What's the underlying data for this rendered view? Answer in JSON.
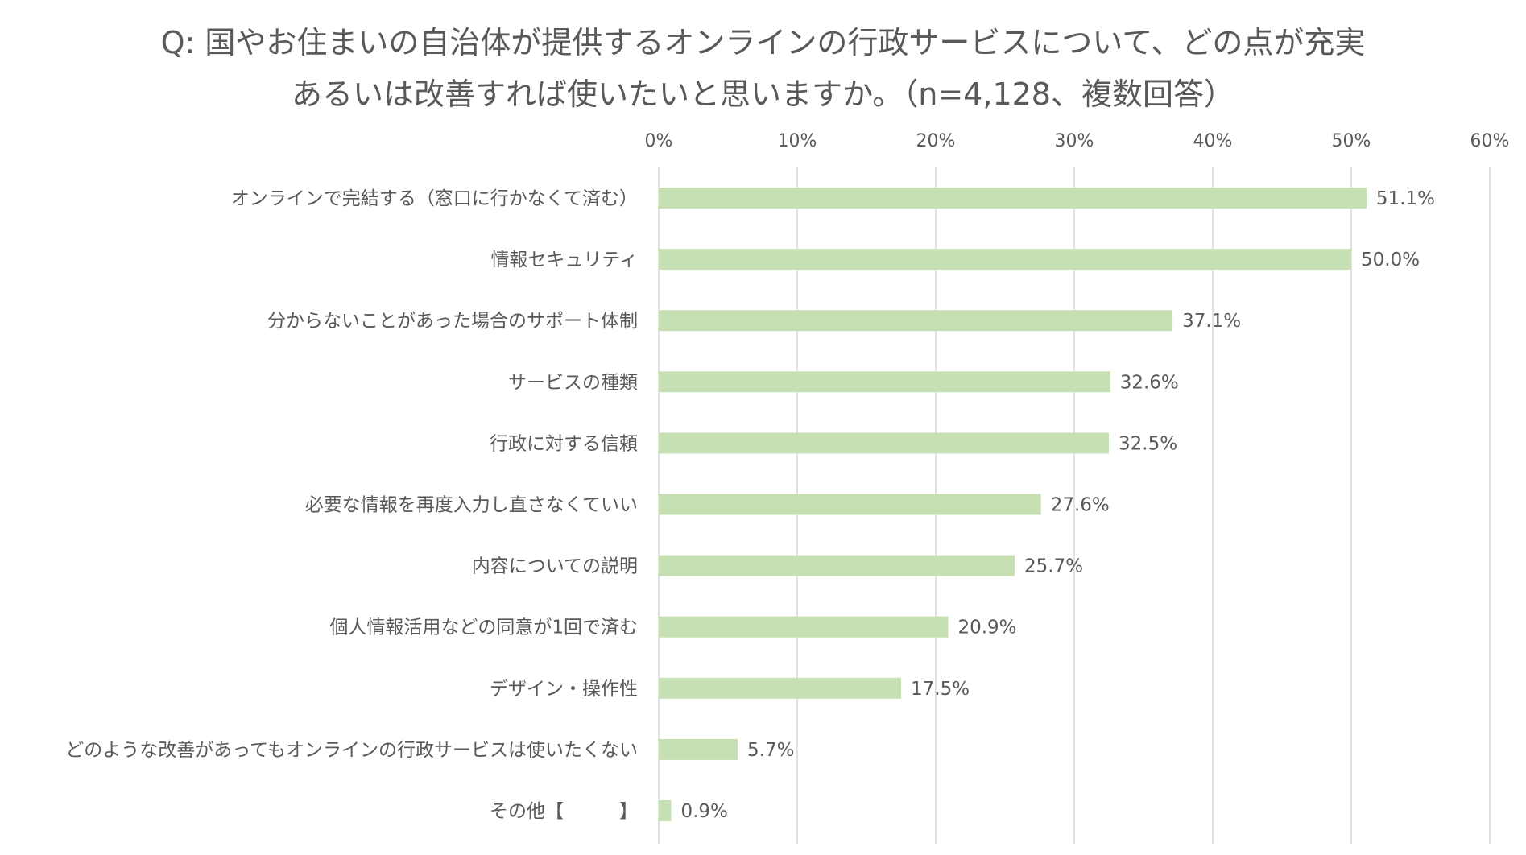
{
  "chart_data": {
    "type": "bar",
    "orientation": "horizontal",
    "title_lines": [
      "Q: 国やお住まいの自治体が提供するオンラインの行政サービスについて、どの点が充実",
      "あるいは改善すれば使いたいと思いますか。（n=4,128、複数回答）"
    ],
    "categories": [
      "オンラインで完結する（窓口に行かなくて済む）",
      "情報セキュリティ",
      "分からないことがあった場合のサポート体制",
      "サービスの種類",
      "行政に対する信頼",
      "必要な情報を再度入力し直さなくていい",
      "内容についての説明",
      "個人情報活用などの同意が1回で済む",
      "デザイン・操作性",
      "どのような改善があってもオンラインの行政サービスは使いたくない",
      "その他【　　　】"
    ],
    "values": [
      51.1,
      50.0,
      37.1,
      32.6,
      32.5,
      27.6,
      25.7,
      20.9,
      17.5,
      5.7,
      0.9
    ],
    "value_labels": [
      "51.1%",
      "50.0%",
      "37.1%",
      "32.6%",
      "32.5%",
      "27.6%",
      "25.7%",
      "20.9%",
      "17.5%",
      "5.7%",
      "0.9%"
    ],
    "x_ticks": [
      0,
      10,
      20,
      30,
      40,
      50,
      60
    ],
    "x_tick_labels": [
      "0%",
      "10%",
      "20%",
      "30%",
      "40%",
      "50%",
      "60%"
    ],
    "xlim": [
      0,
      60
    ],
    "xlabel": "",
    "ylabel": "",
    "grid": true,
    "axis_position": "top",
    "bar_color": "#c6e0b4",
    "grid_color": "#d9d9d9",
    "text_color": "#595959"
  }
}
